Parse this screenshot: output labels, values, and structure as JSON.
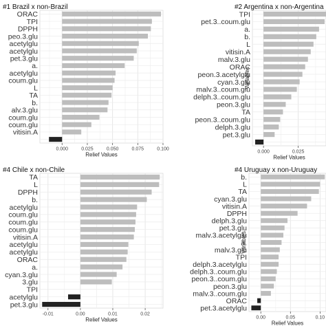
{
  "chart_data": [
    {
      "type": "bar",
      "orientation": "horizontal",
      "title": "#1 Brazil x non-Brazil",
      "xlabel": "Relief Values",
      "ylabel": "",
      "xlim": [
        -0.022,
        0.1
      ],
      "xticks": [
        0,
        0.025,
        0.05,
        0.075,
        0.1
      ],
      "xticklabels": [
        "0.000",
        "0.025",
        "0.050",
        "0.075",
        "0.100"
      ],
      "grid": true,
      "categories": [
        "ORAC",
        "TPI",
        "DPPH",
        "peo.3.glu",
        "acetylglu",
        "acetylglu",
        "pet.3.glu",
        "a.",
        "acetylglu",
        "coum.glu",
        "L",
        "TA",
        "b.",
        "alv.3.glu",
        "coum.glu",
        "coum.glu",
        "vitisin.A",
        ""
      ],
      "values": [
        0.098,
        0.089,
        0.088,
        0.085,
        0.076,
        0.074,
        0.071,
        0.062,
        0.053,
        0.052,
        0.05,
        0.049,
        0.046,
        0.045,
        0.037,
        0.029,
        0.019,
        -0.013
      ],
      "negative_color": "#222222",
      "positive_color": "#bdbdbd"
    },
    {
      "type": "bar",
      "orientation": "horizontal",
      "title": "#2 Argentina x non-Argentina",
      "xlabel": "Relief Values",
      "ylabel": "Variables",
      "xlim": [
        -0.008,
        0.045
      ],
      "xticks": [
        0,
        0.025
      ],
      "xticklabels": [
        "0.000",
        "0.025"
      ],
      "grid": true,
      "categories": [
        "TPI",
        "pet.3..coum.glu",
        "a.",
        "b.",
        "L",
        "vitisin.A",
        "malv.3.glu",
        "ORAC",
        "peon.3.acetylglu",
        "cyan.3.glu",
        "malv.3..coum.glu",
        "delph.3..coum.glu",
        "peon.3.glu",
        "TA",
        "peon.3..coum.glu",
        "delph.3.glu",
        "pet.3.glu",
        ""
      ],
      "values": [
        0.045,
        0.044,
        0.04,
        0.038,
        0.036,
        0.034,
        0.032,
        0.03,
        0.028,
        0.026,
        0.024,
        0.02,
        0.016,
        0.014,
        0.012,
        0.011,
        0.008,
        -0.006
      ],
      "negative_color": "#222222",
      "positive_color": "#bdbdbd"
    },
    {
      "type": "bar",
      "orientation": "horizontal",
      "title": "#4 Chile x non-Chile",
      "xlabel": "Relief Values",
      "ylabel": "",
      "xlim": [
        -0.0125,
        0.0255
      ],
      "xticks": [
        -0.01,
        0,
        0.01,
        0.02
      ],
      "xticklabels": [
        "-0.01",
        "0.00",
        "0.01",
        "0.02"
      ],
      "grid": true,
      "categories": [
        "TA",
        "L",
        "DPPH",
        "b.",
        "acetylglu",
        "coum.glu",
        "coum.glu",
        "coum.glu",
        "vitisin.A",
        "acetylglu",
        "acetylglu",
        "ORAC",
        "a.",
        "cyan.3.glu",
        "3.glu",
        "TPI",
        "acetylglu",
        "pet.3.glu"
      ],
      "values": [
        0.0245,
        0.0243,
        0.022,
        0.0205,
        0.0175,
        0.0172,
        0.017,
        0.0168,
        0.0165,
        0.0148,
        0.0146,
        0.0142,
        0.013,
        0.0112,
        0.0097,
        0.0,
        -0.0038,
        -0.0118
      ],
      "negative_color": "#222222",
      "positive_color": "#bdbdbd"
    },
    {
      "type": "bar",
      "orientation": "horizontal",
      "title": "#4 Uruguay x non-Uruguay",
      "xlabel": "Relief Values",
      "ylabel": "Variables",
      "xlim": [
        -0.02,
        0.11
      ],
      "xticks": [
        0,
        0.05,
        0.1
      ],
      "xticklabels": [
        "0.00",
        "0.05",
        "0.10"
      ],
      "grid": true,
      "categories": [
        "b.",
        "L",
        "TA",
        "cyan.3.glu",
        "vitisin.A",
        "DPPH",
        "delph.3.glu",
        "pet.3.glu",
        "malv.3.acetylglu",
        "a.",
        "malv.3.glu",
        "TPI",
        "delph.3.acetylglu",
        "delph.3..coum.glu",
        "peon.3..coum.glu",
        "peon.3.glu",
        "malv.3..coum.glu",
        "ORAC",
        "pet.3.acetylglu"
      ],
      "values": [
        0.108,
        0.1,
        0.098,
        0.085,
        0.078,
        0.062,
        0.045,
        0.04,
        0.038,
        0.035,
        0.032,
        0.03,
        0.03,
        0.027,
        0.025,
        0.022,
        0.017,
        -0.006,
        -0.016
      ],
      "negative_color": "#222222",
      "positive_color": "#bdbdbd"
    }
  ]
}
